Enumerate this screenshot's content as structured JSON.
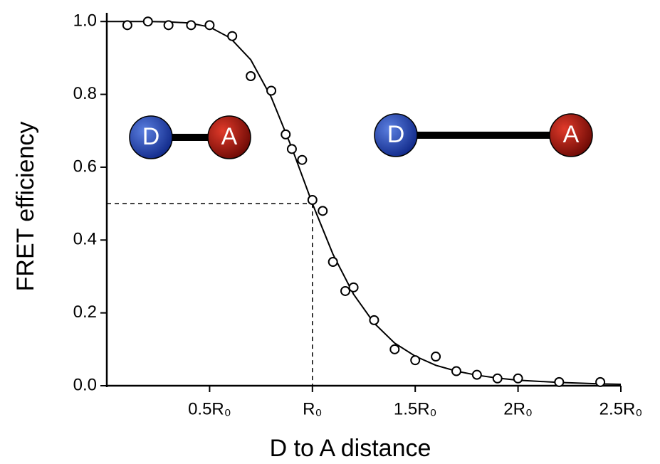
{
  "chart_data": {
    "type": "scatter",
    "xlabel": "D to A distance",
    "ylabel": "FRET efficiency",
    "xlim": [
      0,
      2.5
    ],
    "ylim": [
      0,
      1.02
    ],
    "xticks": [
      {
        "value": 0.5,
        "label": "0.5R₀"
      },
      {
        "value": 1,
        "label": "R₀"
      },
      {
        "value": 1.5,
        "label": "1.5R₀"
      },
      {
        "value": 2,
        "label": "2R₀"
      },
      {
        "value": 2.5,
        "label": "2.5R₀"
      }
    ],
    "yticks": [
      {
        "value": 0,
        "label": "0.0"
      },
      {
        "value": 0.2,
        "label": "0.2"
      },
      {
        "value": 0.4,
        "label": "0.4"
      },
      {
        "value": 0.6,
        "label": "0.6"
      },
      {
        "value": 0.8,
        "label": "0.8"
      },
      {
        "value": 1,
        "label": "1.0"
      }
    ],
    "points": {
      "color": "#000000",
      "x": [
        0.1,
        0.2,
        0.3,
        0.41,
        0.5,
        0.61,
        0.7,
        0.8,
        0.87,
        0.9,
        0.95,
        1.0,
        1.05,
        1.1,
        1.16,
        1.2,
        1.3,
        1.4,
        1.5,
        1.6,
        1.7,
        1.8,
        1.9,
        2.0,
        2.2,
        2.4
      ],
      "values": [
        0.99,
        1.0,
        0.99,
        0.99,
        0.99,
        0.96,
        0.85,
        0.81,
        0.69,
        0.65,
        0.62,
        0.51,
        0.48,
        0.34,
        0.26,
        0.27,
        0.18,
        0.1,
        0.07,
        0.08,
        0.04,
        0.03,
        0.02,
        0.02,
        0.01,
        0.01
      ]
    },
    "fit": {
      "color": "#000000",
      "x": [
        0,
        0.1,
        0.2,
        0.3,
        0.4,
        0.5,
        0.6,
        0.7,
        0.8,
        0.9,
        1.0,
        1.1,
        1.2,
        1.3,
        1.4,
        1.5,
        1.6,
        1.7,
        1.8,
        1.9,
        2.0,
        2.1,
        2.2,
        2.3,
        2.4,
        2.5
      ],
      "values": [
        1,
        1,
        1,
        0.999,
        0.996,
        0.985,
        0.955,
        0.895,
        0.792,
        0.653,
        0.5,
        0.361,
        0.251,
        0.172,
        0.117,
        0.081,
        0.056,
        0.04,
        0.029,
        0.021,
        0.015,
        0.012,
        0.009,
        0.007,
        0.005,
        0.004
      ]
    },
    "reference": {
      "x": 1,
      "y": 0.5
    },
    "molecules": [
      {
        "donor": "D",
        "acceptor": "A"
      },
      {
        "donor": "D",
        "acceptor": "A"
      }
    ]
  }
}
